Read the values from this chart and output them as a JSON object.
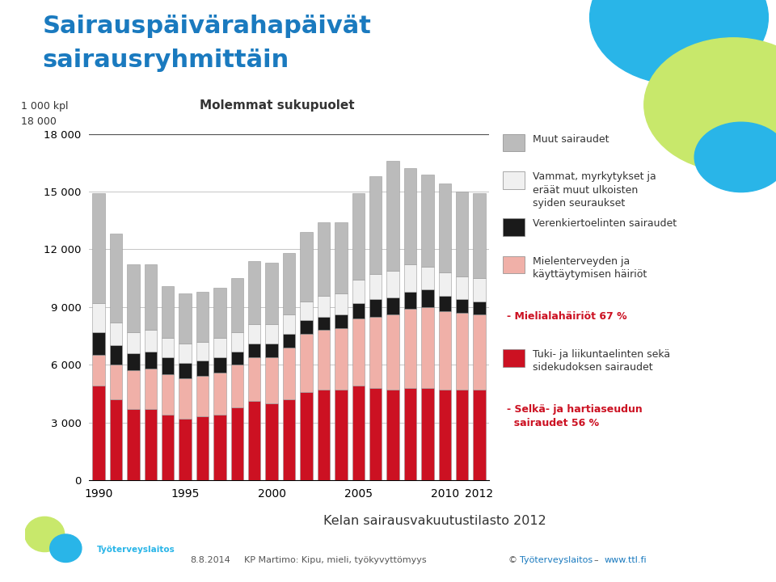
{
  "title_line1": "Sairauspäivärahapäivät",
  "title_line2": "sairausryhmittäin",
  "subtitle": "Molemmat sukupuolet",
  "ylabel": "1 000 kpl",
  "source": "Kelan sairausvakuutustilasto 2012",
  "years": [
    1990,
    1991,
    1992,
    1993,
    1994,
    1995,
    1996,
    1997,
    1998,
    1999,
    2000,
    2001,
    2002,
    2003,
    2004,
    2005,
    2006,
    2007,
    2008,
    2009,
    2010,
    2011,
    2012
  ],
  "shown_years": [
    1990,
    1995,
    2000,
    2005,
    2010,
    2012
  ],
  "colors": {
    "tuki": "#cc1122",
    "mieli": "#f0b0a8",
    "verenk": "#1a1a1a",
    "vammat": "#f0f0f0",
    "muut": "#bbbbbb"
  },
  "data": {
    "tuki": [
      4900,
      4200,
      3700,
      3700,
      3400,
      3200,
      3300,
      3400,
      3800,
      4100,
      4000,
      4200,
      4600,
      4700,
      4700,
      4900,
      4800,
      4700,
      4800,
      4800,
      4700,
      4700,
      4700
    ],
    "mieli": [
      1600,
      1800,
      2000,
      2100,
      2100,
      2100,
      2100,
      2200,
      2200,
      2300,
      2400,
      2700,
      3000,
      3100,
      3200,
      3500,
      3700,
      3900,
      4100,
      4200,
      4100,
      4000,
      3900
    ],
    "verenk": [
      1200,
      1000,
      900,
      900,
      900,
      800,
      800,
      800,
      700,
      700,
      700,
      700,
      700,
      700,
      700,
      800,
      900,
      900,
      900,
      900,
      800,
      700,
      700
    ],
    "vammat": [
      1500,
      1200,
      1100,
      1100,
      1000,
      1000,
      1000,
      1000,
      1000,
      1000,
      1000,
      1000,
      1000,
      1100,
      1100,
      1200,
      1300,
      1400,
      1400,
      1200,
      1200,
      1200,
      1200
    ],
    "muut": [
      5700,
      4600,
      3500,
      3400,
      2700,
      2600,
      2600,
      2600,
      2800,
      3300,
      3200,
      3200,
      3600,
      3800,
      3700,
      4500,
      5100,
      5700,
      5000,
      4800,
      4600,
      4400,
      4400
    ]
  },
  "ylim": [
    0,
    18000
  ],
  "yticks": [
    0,
    3000,
    6000,
    9000,
    12000,
    15000,
    18000
  ],
  "ytick_labels": [
    "0",
    "3 000",
    "6 000",
    "9 000",
    "12 000",
    "15 000",
    "18 000"
  ],
  "bg_color": "#ffffff",
  "title_color": "#1a7abf",
  "bar_width": 0.72,
  "legend_entries": [
    {
      "label": "Muut sairaudet",
      "color": "#bbbbbb",
      "text_color": "#333333",
      "bold": false,
      "box": true
    },
    {
      "label": "Vammat, myrkytykset ja\neräät muut ulkoisten\nsyiden seuraukset",
      "color": "#f0f0f0",
      "text_color": "#333333",
      "bold": false,
      "box": true
    },
    {
      "label": "Verenkiertoelinten sairaudet",
      "color": "#1a1a1a",
      "text_color": "#333333",
      "bold": false,
      "box": true
    },
    {
      "label": "Mielenterveyden ja\nkäyttäytymisen häiriöt",
      "color": "#f0b0a8",
      "text_color": "#333333",
      "bold": false,
      "box": true
    },
    {
      "label": "- Mielialahäiriöt 67 %",
      "color": null,
      "text_color": "#cc1122",
      "bold": true,
      "box": false
    },
    {
      "label": "Tuki- ja liikuntaelinten sekä\nsidekudoksen sairaudet",
      "color": "#cc1122",
      "text_color": "#333333",
      "bold": false,
      "box": true
    },
    {
      "label": "- Selkä- ja hartiaseudun\n  sairaudet 56 %",
      "color": null,
      "text_color": "#cc1122",
      "bold": true,
      "box": false
    }
  ],
  "footer_date": "8.8.2014",
  "footer_author": "KP Martimo: Kipu, mieli, työkyvyttömyys",
  "footer_copy": "©",
  "footer_org": "Työterveyslaitos",
  "footer_dash": "–",
  "footer_web": "www.ttl.fi"
}
